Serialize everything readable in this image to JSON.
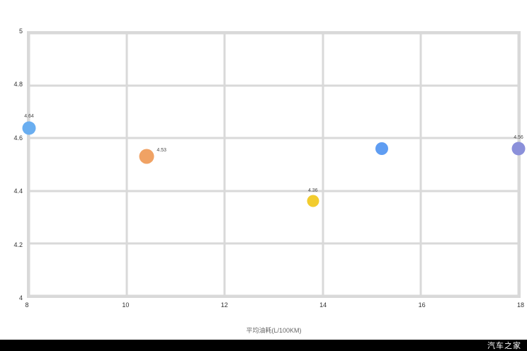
{
  "watermark": {
    "text": "汽车之家",
    "bg": "#000000",
    "color": "#ffffff"
  },
  "chart_data": {
    "type": "scatter",
    "title": "",
    "xlabel": "平均油耗(L/100KM)",
    "ylabel": "",
    "xlim": [
      8,
      18
    ],
    "ylim": [
      4,
      5
    ],
    "x_ticks": [
      8,
      10,
      12,
      14,
      16,
      18
    ],
    "y_ticks": [
      4,
      4.2,
      4.4,
      4.6,
      4.8,
      5
    ],
    "grid": true,
    "grid_color": "#d9d9d9",
    "points": [
      {
        "x": 8.0,
        "y": 4.64,
        "size": 19,
        "color": "#6aaef0",
        "label": "4.64",
        "label_pos": "top"
      },
      {
        "x": 10.4,
        "y": 4.53,
        "size": 21,
        "color": "#f0a264",
        "label": "4.53",
        "label_pos": "right"
      },
      {
        "x": 13.8,
        "y": 4.36,
        "size": 17,
        "color": "#f2cc2e",
        "label": "4.36",
        "label_pos": "top"
      },
      {
        "x": 15.2,
        "y": 4.56,
        "size": 18,
        "color": "#5f9df2",
        "label": "",
        "label_pos": "top"
      },
      {
        "x": 18.0,
        "y": 4.56,
        "size": 19,
        "color": "#8b90da",
        "label": "4.56",
        "label_pos": "top"
      }
    ]
  }
}
